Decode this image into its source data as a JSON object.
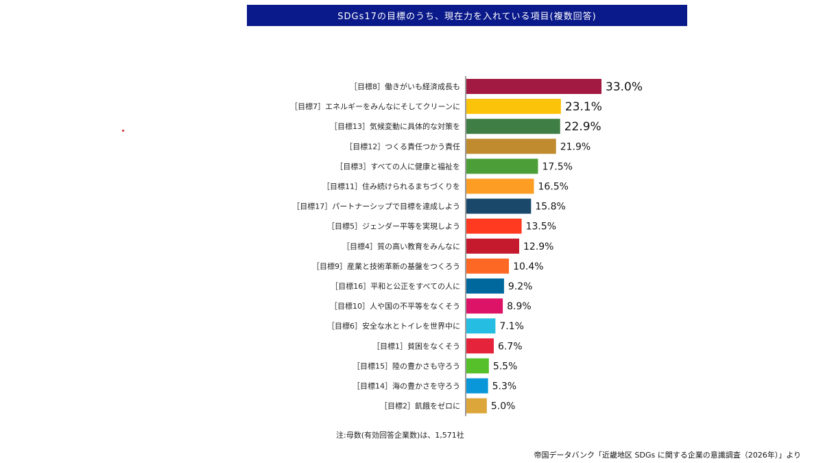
{
  "title": "SDGs17の目標のうち、現在力を入れている項目(複数回答)",
  "note": "注:母数(有効回答企業数)は、1,571社",
  "source": "帝国データバンク「近畿地区 SDGs に関する企業の意識調査（2026年）」より",
  "chart_data": {
    "type": "bar",
    "orientation": "horizontal",
    "title": "SDGs17の目標のうち、現在力を入れている項目(複数回答)",
    "xlabel": "",
    "ylabel": "",
    "unit": "%",
    "xlim": [
      0,
      33.0
    ],
    "grid": false,
    "categories": [
      "［目標8］働きがいも経済成長も",
      "［目標7］エネルギーをみんなにそしてクリーンに",
      "［目標13］気候変動に具体的な対策を",
      "［目標12］つくる責任つかう責任",
      "［目標3］すべての人に健康と福祉を",
      "［目標11］住み続けられるまちづくりを",
      "［目標17］パートナーシップで目標を達成しよう",
      "［目標5］ジェンダー平等を実現しよう",
      "［目標4］質の高い教育をみんなに",
      "［目標9］産業と技術革新の基盤をつくろう",
      "［目標16］平和と公正をすべての人に",
      "［目標10］人や国の不平等をなくそう",
      "［目標6］安全な水とトイレを世界中に",
      "［目標1］貧困をなくそう",
      "［目標15］陸の豊かさも守ろう",
      "［目標14］海の豊かさを守ろう",
      "［目標2］飢餓をゼロに"
    ],
    "values": [
      33.0,
      23.1,
      22.9,
      21.9,
      17.5,
      16.5,
      15.8,
      13.5,
      12.9,
      10.4,
      9.2,
      8.9,
      7.1,
      6.7,
      5.5,
      5.3,
      5.0
    ],
    "value_labels": [
      "33.0%",
      "23.1%",
      "22.9%",
      "21.9%",
      "17.5%",
      "16.5%",
      "15.8%",
      "13.5%",
      "12.9%",
      "10.4%",
      "9.2%",
      "8.9%",
      "7.1%",
      "6.7%",
      "5.5%",
      "5.3%",
      "5.0%"
    ],
    "emphasized_top": 3,
    "colors": [
      "#a21942",
      "#fcc30b",
      "#3f7e44",
      "#bf8b2e",
      "#4c9f38",
      "#fd9d24",
      "#19486a",
      "#ff3a21",
      "#c5192d",
      "#fd6925",
      "#00689d",
      "#dd1367",
      "#26bde2",
      "#e5243b",
      "#56c02b",
      "#0a97d9",
      "#dda63a"
    ]
  }
}
